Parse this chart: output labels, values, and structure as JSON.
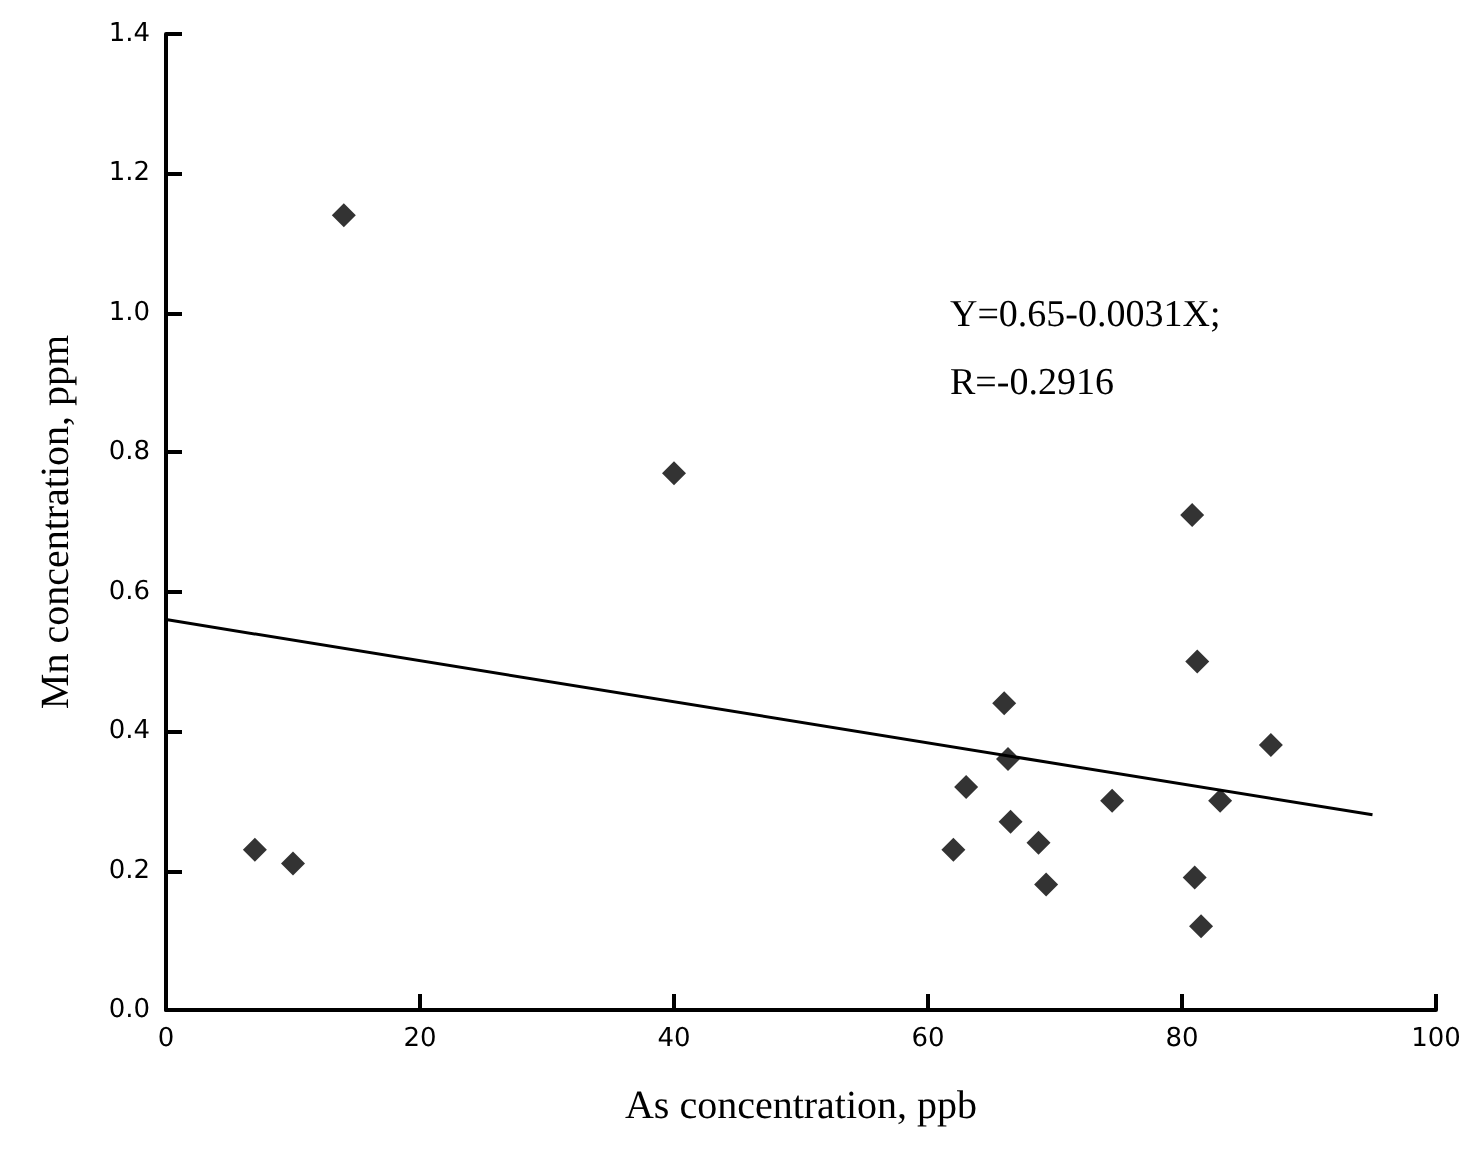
{
  "chart_data": {
    "type": "scatter",
    "xlabel": "As concentration, ppb",
    "ylabel": "Mn concentration, ppm",
    "marker": "diamond",
    "grid": false,
    "xlim": [
      0,
      100
    ],
    "xticks": [
      0,
      20,
      40,
      60,
      80,
      100
    ],
    "ylim": [
      0,
      1.4
    ],
    "yticks": [
      {
        "value": 0,
        "label": "0.0"
      },
      {
        "value": 0.2,
        "label": "0.2"
      },
      {
        "value": 0.4,
        "label": "0.4"
      },
      {
        "value": 0.6,
        "label": "0.6"
      },
      {
        "value": 0.8,
        "label": "0.8"
      },
      {
        "value": 1.0,
        "label": "1.0"
      },
      {
        "value": 1.2,
        "label": "1.2"
      },
      {
        "value": 1.4,
        "label": "1.4"
      }
    ],
    "annotations": [
      "Y=0.65-0.0031X;",
      "R=-0.2916"
    ],
    "series": [
      {
        "color": "#000000",
        "x": [
          7,
          10,
          14,
          40,
          62,
          63,
          66,
          66.3,
          66.5,
          68.7,
          69.3,
          74.5,
          80.8,
          81.2,
          81,
          81.5,
          83,
          87
        ],
        "values": [
          0.23,
          0.21,
          1.14,
          0.77,
          0.23,
          0.32,
          0.44,
          0.36,
          0.27,
          0.24,
          0.18,
          0.3,
          0.71,
          0.5,
          0.19,
          0.12,
          0.3,
          0.38
        ]
      },
      {
        "type": "line",
        "color": "#000000",
        "marker": "none",
        "x": [
          0,
          95
        ],
        "values": [
          0.56,
          0.28
        ]
      }
    ]
  }
}
